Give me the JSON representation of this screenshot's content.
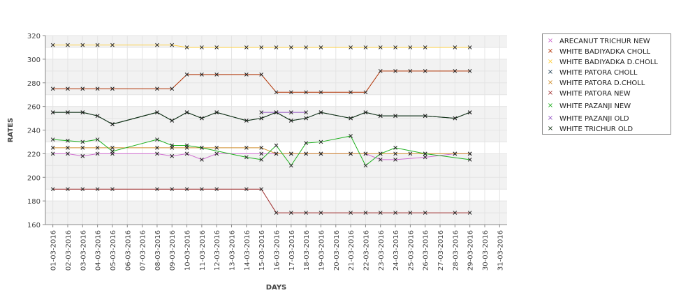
{
  "chart_data": {
    "type": "line",
    "title": "",
    "xlabel": "DAYS",
    "ylabel": "RATES",
    "ylim": [
      160,
      320
    ],
    "y_ticks": [
      160,
      180,
      200,
      220,
      240,
      260,
      280,
      300,
      320
    ],
    "x": [
      "01-03-2016",
      "02-03-2016",
      "03-03-2016",
      "04-03-2016",
      "05-03-2016",
      "06-03-2016",
      "07-03-2016",
      "08-03-2016",
      "09-03-2016",
      "10-03-2016",
      "11-03-2016",
      "12-03-2016",
      "13-03-2016",
      "14-03-2016",
      "15-03-2016",
      "16-03-2016",
      "17-03-2016",
      "18-03-2016",
      "19-03-2016",
      "20-03-2016",
      "21-03-2016",
      "22-03-2016",
      "23-03-2016",
      "24-03-2016",
      "25-03-2016",
      "26-03-2016",
      "27-03-2016",
      "28-03-2016",
      "29-03-2016",
      "30-03-2016",
      "31-03-2016"
    ],
    "grid": true,
    "legend_position": "right",
    "series": [
      {
        "name": "ARECANUT TRICHUR NEW",
        "color": "#d070d0",
        "values": [
          220,
          220,
          218,
          220,
          220,
          null,
          null,
          220,
          218,
          220,
          215,
          220,
          null,
          null,
          220,
          220,
          220,
          220,
          220,
          null,
          220,
          220,
          215,
          215,
          null,
          217,
          null,
          220,
          220,
          null,
          null
        ]
      },
      {
        "name": "WHITE BADIYADKA CHOLL",
        "color": "#b03000",
        "values": [
          275,
          275,
          275,
          275,
          275,
          null,
          null,
          275,
          275,
          287,
          287,
          287,
          null,
          287,
          287,
          272,
          272,
          272,
          272,
          null,
          272,
          272,
          290,
          290,
          290,
          290,
          null,
          290,
          290,
          null,
          null
        ]
      },
      {
        "name": "WHITE BADIYADKA D.CHOLL",
        "color": "#ffd040",
        "values": [
          312,
          312,
          312,
          312,
          312,
          null,
          null,
          312,
          312,
          310,
          310,
          310,
          null,
          310,
          310,
          310,
          310,
          310,
          310,
          null,
          310,
          310,
          310,
          310,
          310,
          310,
          null,
          310,
          310,
          null,
          null
        ]
      },
      {
        "name": "WHITE PATORA CHOLL",
        "color": "#1a3a50",
        "values": [
          255,
          255,
          255,
          252,
          245,
          null,
          null,
          255,
          248,
          255,
          250,
          255,
          null,
          248,
          250,
          255,
          248,
          250,
          255,
          null,
          250,
          255,
          252,
          252,
          null,
          252,
          null,
          250,
          255,
          null,
          null
        ]
      },
      {
        "name": "WHITE PATORA D.CHOLL",
        "color": "#d09030",
        "values": [
          225,
          225,
          225,
          225,
          225,
          null,
          null,
          225,
          225,
          225,
          225,
          225,
          null,
          225,
          225,
          220,
          220,
          220,
          220,
          null,
          220,
          220,
          220,
          220,
          220,
          220,
          null,
          220,
          220,
          null,
          null
        ]
      },
      {
        "name": "WHITE PATORA NEW",
        "color": "#a03030",
        "values": [
          190,
          190,
          190,
          190,
          190,
          null,
          null,
          190,
          190,
          190,
          190,
          190,
          null,
          190,
          190,
          170,
          170,
          170,
          170,
          null,
          170,
          170,
          170,
          170,
          170,
          170,
          null,
          170,
          170,
          null,
          null
        ]
      },
      {
        "name": "WHITE PAZANJI NEW",
        "color": "#20b020",
        "values": [
          232,
          231,
          230,
          232,
          222,
          null,
          null,
          232,
          227,
          227,
          225,
          null,
          null,
          217,
          215,
          227,
          210,
          229,
          230,
          null,
          235,
          210,
          220,
          225,
          null,
          220,
          null,
          null,
          215,
          null,
          null
        ]
      },
      {
        "name": "WHITE PAZANJI OLD",
        "color": "#9050c0",
        "values": [
          null,
          null,
          null,
          null,
          null,
          null,
          null,
          null,
          null,
          null,
          null,
          null,
          null,
          null,
          255,
          255,
          255,
          255,
          null,
          null,
          null,
          null,
          null,
          null,
          null,
          null,
          null,
          null,
          null,
          null,
          null
        ]
      },
      {
        "name": "WHITE TRICHUR OLD",
        "color": "#103010",
        "values": [
          255,
          255,
          255,
          252,
          245,
          null,
          null,
          255,
          248,
          255,
          250,
          255,
          null,
          248,
          250,
          255,
          248,
          250,
          255,
          null,
          250,
          255,
          252,
          252,
          null,
          252,
          null,
          250,
          255,
          null,
          null
        ]
      }
    ]
  }
}
